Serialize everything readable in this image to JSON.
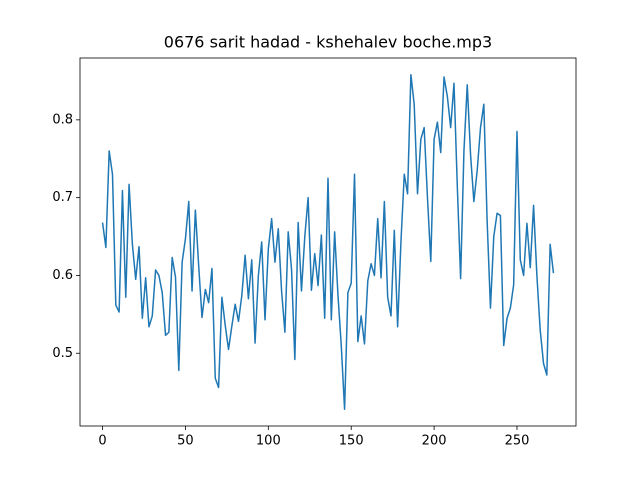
{
  "chart_data": {
    "type": "line",
    "title": "0676 sarit hadad - kshehalev boche.mp3",
    "x": [
      0,
      2,
      4,
      6,
      8,
      10,
      12,
      14,
      16,
      18,
      20,
      22,
      24,
      26,
      28,
      30,
      32,
      34,
      36,
      38,
      40,
      42,
      44,
      46,
      48,
      50,
      52,
      54,
      56,
      58,
      60,
      62,
      64,
      66,
      68,
      70,
      72,
      74,
      76,
      78,
      80,
      82,
      84,
      86,
      88,
      90,
      92,
      94,
      96,
      98,
      100,
      102,
      104,
      106,
      108,
      110,
      112,
      114,
      116,
      118,
      120,
      122,
      124,
      126,
      128,
      130,
      132,
      134,
      136,
      138,
      140,
      142,
      144,
      146,
      148,
      150,
      152,
      154,
      156,
      158,
      160,
      162,
      164,
      166,
      168,
      170,
      172,
      174,
      176,
      178,
      180,
      182,
      184,
      186,
      188,
      190,
      192,
      194,
      196,
      198,
      200,
      202,
      204,
      206,
      208,
      210,
      212,
      214,
      216,
      218,
      220,
      222,
      224,
      226,
      228,
      230,
      232,
      234,
      236,
      238,
      240,
      242,
      244,
      246,
      248,
      250,
      252,
      254,
      256,
      258,
      260,
      262,
      264,
      266,
      268,
      270,
      272
    ],
    "series": [
      {
        "color": "#1f77b4",
        "values": [
          0.668,
          0.636,
          0.76,
          0.73,
          0.562,
          0.553,
          0.709,
          0.572,
          0.717,
          0.64,
          0.595,
          0.637,
          0.545,
          0.597,
          0.534,
          0.548,
          0.607,
          0.6,
          0.578,
          0.523,
          0.527,
          0.623,
          0.598,
          0.478,
          0.617,
          0.647,
          0.695,
          0.58,
          0.684,
          0.612,
          0.546,
          0.582,
          0.565,
          0.609,
          0.468,
          0.456,
          0.572,
          0.536,
          0.505,
          0.535,
          0.563,
          0.541,
          0.574,
          0.626,
          0.57,
          0.62,
          0.513,
          0.6,
          0.643,
          0.543,
          0.634,
          0.673,
          0.617,
          0.66,
          0.58,
          0.527,
          0.656,
          0.608,
          0.492,
          0.668,
          0.58,
          0.65,
          0.7,
          0.581,
          0.628,
          0.587,
          0.652,
          0.545,
          0.725,
          0.543,
          0.656,
          0.575,
          0.51,
          0.428,
          0.578,
          0.59,
          0.73,
          0.515,
          0.548,
          0.512,
          0.593,
          0.615,
          0.6,
          0.673,
          0.597,
          0.695,
          0.572,
          0.548,
          0.658,
          0.534,
          0.643,
          0.73,
          0.705,
          0.858,
          0.82,
          0.705,
          0.775,
          0.79,
          0.7,
          0.618,
          0.775,
          0.797,
          0.758,
          0.855,
          0.83,
          0.79,
          0.847,
          0.715,
          0.596,
          0.76,
          0.845,
          0.755,
          0.695,
          0.735,
          0.79,
          0.82,
          0.67,
          0.558,
          0.65,
          0.68,
          0.677,
          0.51,
          0.545,
          0.558,
          0.588,
          0.785,
          0.62,
          0.6,
          0.667,
          0.61,
          0.69,
          0.6,
          0.53,
          0.487,
          0.472,
          0.64,
          0.603
        ]
      }
    ],
    "xlim": [
      -13.6,
      285.6
    ],
    "ylim": [
      0.4065,
      0.8795
    ],
    "xticks": [
      0,
      50,
      100,
      150,
      200,
      250
    ],
    "yticks": [
      0.5,
      0.6,
      0.7,
      0.8
    ]
  }
}
